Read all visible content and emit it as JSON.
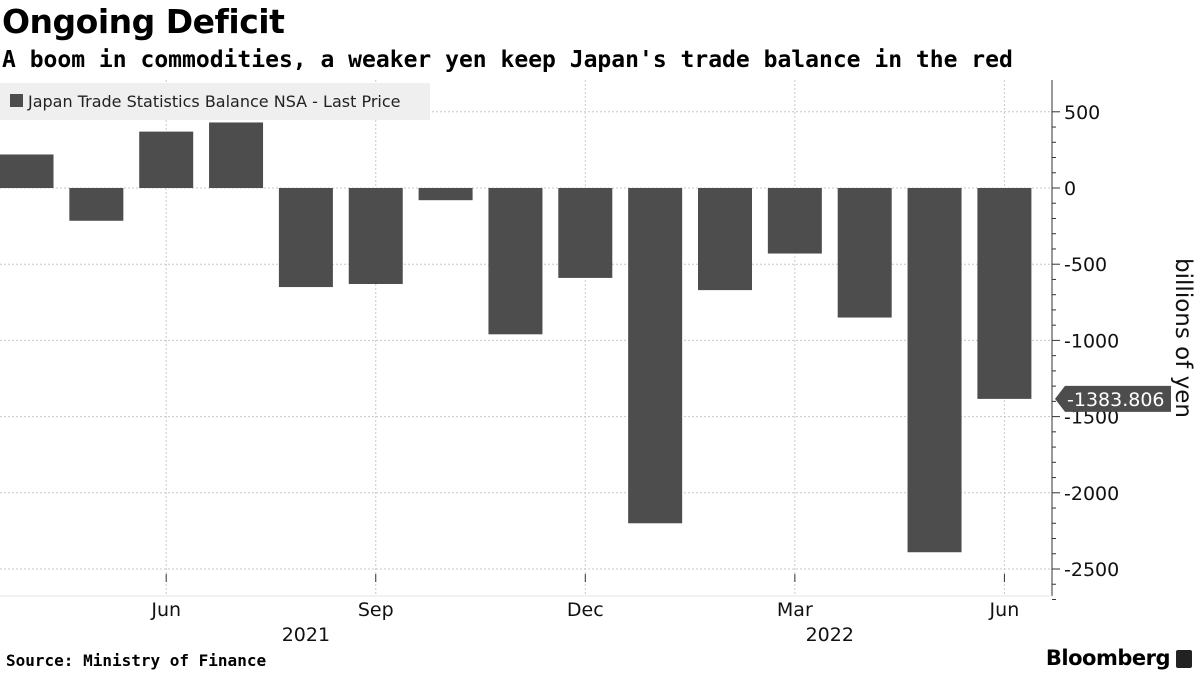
{
  "header": {
    "title": "Ongoing Deficit",
    "subtitle": "A boom in commodities, a weaker yen keep Japan's trade balance in the red"
  },
  "footer": {
    "source": "Source: Ministry of Finance",
    "brand": "Bloomberg"
  },
  "colors": {
    "bar": "#4d4d4d",
    "grid": "#c8c8c8",
    "axis": "#333333"
  },
  "chart_data": {
    "type": "bar",
    "title": "Ongoing Deficit",
    "subtitle": "A boom in commodities, a weaker yen keep Japan's trade balance in the red",
    "categories": [
      "Apr 2021",
      "May 2021",
      "Jun 2021",
      "Jul 2021",
      "Aug 2021",
      "Sep 2021",
      "Oct 2021",
      "Nov 2021",
      "Dec 2021",
      "Jan 2022",
      "Feb 2022",
      "Mar 2022",
      "Apr 2022",
      "May 2022",
      "Jun 2022"
    ],
    "series": [
      {
        "name": "Japan Trade Statistics Balance NSA - Last Price",
        "values": [
          220,
          -215,
          370,
          430,
          -650,
          -630,
          -80,
          -960,
          -590,
          -2200,
          -670,
          -430,
          -850,
          -2390,
          -1383.806
        ]
      }
    ],
    "xticks": [
      {
        "label": "Jun",
        "index": 2
      },
      {
        "label": "Sep",
        "index": 5
      },
      {
        "label": "Dec",
        "index": 8
      },
      {
        "label": "Mar",
        "index": 11
      },
      {
        "label": "Jun",
        "index": 14
      }
    ],
    "year_labels": [
      {
        "label": "2021",
        "index": 4
      },
      {
        "label": "2022",
        "index": 11.5
      }
    ],
    "yticks": [
      500,
      0,
      -500,
      -1000,
      -1500,
      -2000,
      -2500
    ],
    "ytick_labels": [
      "500",
      "0",
      "-500",
      "-1000",
      "-1500",
      "-2000",
      "-2500"
    ],
    "ylabel": "billions of yen",
    "ylim": [
      -2700,
      700
    ],
    "legend": "Japan Trade Statistics Balance NSA - Last Price",
    "legend_position": "top-left",
    "last_value_label": "-1383.806",
    "grid": true
  }
}
